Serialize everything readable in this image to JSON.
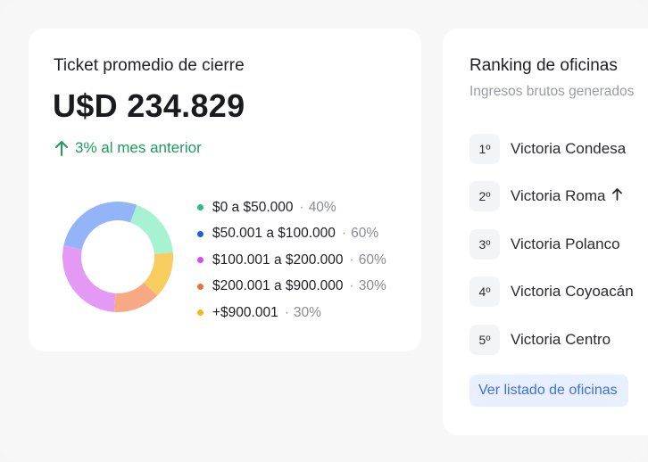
{
  "ticket": {
    "title": "Ticket promedio de cierre",
    "value": "U$D 234.829",
    "delta": "3% al mes anterior",
    "delta_color": "#1f9a5b"
  },
  "chart_data": {
    "type": "pie",
    "style": "donut",
    "categories": [
      "$0 a $50.000",
      "$50.001 a $100.000",
      "$100.001 a $200.000",
      "$200.001 a $900.000",
      "+$900.001"
    ],
    "labels": [
      "40%",
      "60%",
      "60%",
      "30%",
      "30%"
    ],
    "values": [
      40,
      60,
      60,
      30,
      30
    ],
    "colors": [
      "#22c27e",
      "#1f5fd6",
      "#d64af0",
      "#f06f3c",
      "#f3b818"
    ],
    "arc_colors": [
      "#a6f2d3",
      "#93b5f7",
      "#e49af4",
      "#f7a983",
      "#f7cd60"
    ],
    "arc_order": [
      0,
      4,
      3,
      2,
      1
    ],
    "separator": "·"
  },
  "ranking": {
    "title": "Ranking de oficinas",
    "subtitle": "Ingresos brutos generados",
    "items": [
      {
        "rank": "1º",
        "name": "Victoria Condesa",
        "trend": ""
      },
      {
        "rank": "2º",
        "name": "Victoria Roma",
        "trend": "up"
      },
      {
        "rank": "3º",
        "name": "Victoria Polanco",
        "trend": ""
      },
      {
        "rank": "4º",
        "name": "Victoria Coyoacán",
        "trend": ""
      },
      {
        "rank": "5º",
        "name": "Victoria Centro",
        "trend": ""
      }
    ],
    "cta_label": "Ver listado de oficinas",
    "cta_color": "#3f6fe0"
  }
}
